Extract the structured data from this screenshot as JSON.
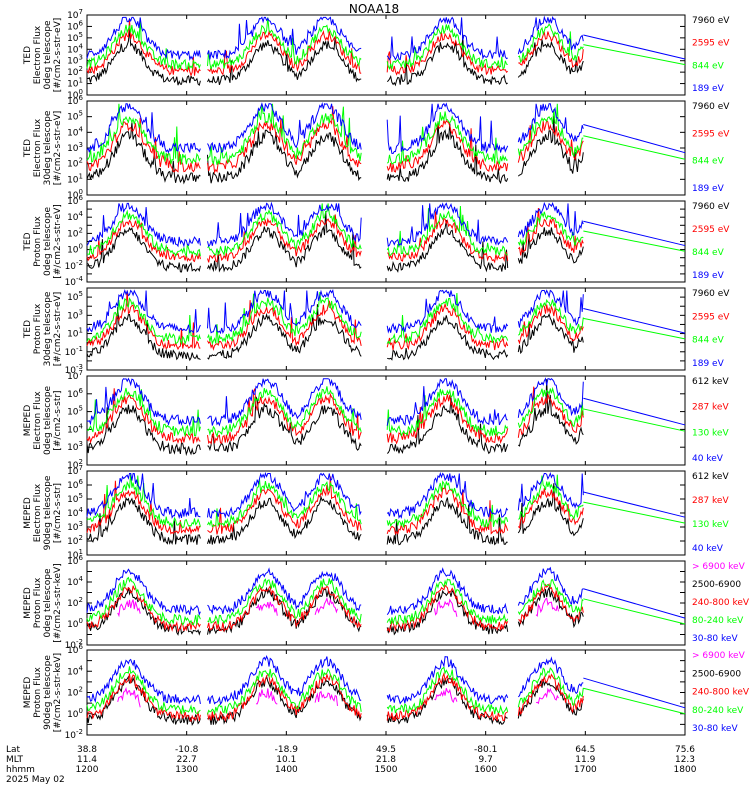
{
  "title": "NOAA18",
  "colors": {
    "black": "#000000",
    "red": "#ff0000",
    "green": "#00ff00",
    "blue": "#0000ff",
    "magenta": "#ff00ff"
  },
  "panels": [
    {
      "ylabel": [
        "TED",
        "Electron Flux",
        "0deg telescope",
        "[#/cm2-s-str-eV]"
      ],
      "ymin_exp": 0,
      "ymax_exp": 7,
      "legend": [
        "7960 eV",
        "2595 eV",
        "844 eV",
        "189 eV"
      ],
      "legend_colors": [
        "#000000",
        "#ff0000",
        "#00ff00",
        "#0000ff"
      ]
    },
    {
      "ylabel": [
        "TED",
        "Electron Flux",
        "30deg telescope",
        "[#/cm2-s-str-eV]"
      ],
      "ymin_exp": 0,
      "ymax_exp": 6,
      "legend": [
        "7960 eV",
        "2595 eV",
        "844 eV",
        "189 eV"
      ],
      "legend_colors": [
        "#000000",
        "#ff0000",
        "#00ff00",
        "#0000ff"
      ]
    },
    {
      "ylabel": [
        "TED",
        "Proton Flux",
        "0deg telescope",
        "[#/cm2-s-str-eV]"
      ],
      "ymin_exp": -4,
      "ymax_exp": 6,
      "legend": [
        "7960 eV",
        "2595 eV",
        "844 eV",
        "189 eV"
      ],
      "legend_colors": [
        "#000000",
        "#ff0000",
        "#00ff00",
        "#0000ff"
      ]
    },
    {
      "ylabel": [
        "TED",
        "Proton Flux",
        "30deg telescope",
        "[#/cm2-s-str-eV]"
      ],
      "ymin_exp": -3,
      "ymax_exp": 6,
      "legend": [
        "7960 eV",
        "2595 eV",
        "844 eV",
        "189 eV"
      ],
      "legend_colors": [
        "#000000",
        "#ff0000",
        "#00ff00",
        "#0000ff"
      ]
    },
    {
      "ylabel": [
        "MEPED",
        "Electron Flux",
        "0deg telescope",
        "[#/cm2-s-str]"
      ],
      "ymin_exp": 2,
      "ymax_exp": 7,
      "legend": [
        "612 keV",
        "287 keV",
        "130 keV",
        "40 keV"
      ],
      "legend_colors": [
        "#000000",
        "#ff0000",
        "#00ff00",
        "#0000ff"
      ]
    },
    {
      "ylabel": [
        "MEPED",
        "Electron Flux",
        "90deg telescope",
        "[#/cm2-s-str]"
      ],
      "ymin_exp": 1,
      "ymax_exp": 7,
      "legend": [
        "612 keV",
        "287 keV",
        "130 keV",
        "40 keV"
      ],
      "legend_colors": [
        "#000000",
        "#ff0000",
        "#00ff00",
        "#0000ff"
      ]
    },
    {
      "ylabel": [
        "MEPED",
        "Proton Flux",
        "0deg telescope",
        "[#/cm2-s-str-keV]"
      ],
      "ymin_exp": -2,
      "ymax_exp": 6,
      "legend": [
        "> 6900 keV",
        "2500-6900",
        "240-800 keV",
        "80-240 keV",
        "30-80 keV"
      ],
      "legend_colors": [
        "#ff00ff",
        "#000000",
        "#ff0000",
        "#00ff00",
        "#0000ff"
      ]
    },
    {
      "ylabel": [
        "MEPED",
        "Proton Flux",
        "90deg telescope",
        "[#/cm2-s-str-keV]"
      ],
      "ymin_exp": -2,
      "ymax_exp": 6,
      "legend": [
        "> 6900 keV",
        "2500-6900",
        "240-800 keV",
        "80-240 keV",
        "30-80 keV"
      ],
      "legend_colors": [
        "#ff00ff",
        "#000000",
        "#ff0000",
        "#00ff00",
        "#0000ff"
      ]
    }
  ],
  "xaxis": {
    "row_labels": [
      "Lat",
      "MLT",
      "hhmm",
      "2025 May 02"
    ],
    "ticks": [
      {
        "lat": "38.8",
        "mlt": "11.4",
        "hhmm": "1200"
      },
      {
        "lat": "-10.8",
        "mlt": "22.7",
        "hhmm": "1300"
      },
      {
        "lat": "-18.9",
        "mlt": "10.1",
        "hhmm": "1400"
      },
      {
        "lat": "49.5",
        "mlt": "21.8",
        "hhmm": "1500"
      },
      {
        "lat": "-80.1",
        "mlt": "9.7",
        "hhmm": "1600"
      },
      {
        "lat": "64.5",
        "mlt": "11.9",
        "hhmm": "1700"
      },
      {
        "lat": "75.6",
        "mlt": "12.3",
        "hhmm": "1800"
      }
    ]
  },
  "chart_data": {
    "type": "line",
    "title": "NOAA18",
    "x_range": [
      "1200",
      "1800"
    ],
    "y_scale": "log",
    "notes_series": [
      "TED electron 0deg",
      "TED electron 30deg",
      "TED proton 0deg",
      "TED proton 30deg",
      "MEPED electron 0deg",
      "MEPED electron 90deg",
      "MEPED proton 0deg",
      "MEPED proton 90deg"
    ]
  }
}
